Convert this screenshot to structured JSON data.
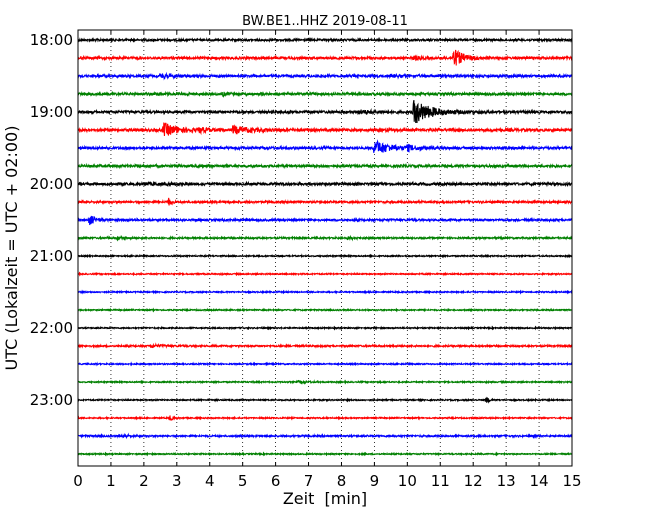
{
  "chart_data": {
    "type": "line",
    "title": "BW.BE1..HHZ 2019-08-11",
    "xlabel": "Zeit  [min]",
    "ylabel": "UTC (Lokalzeit = UTC + 02:00)",
    "xlim": [
      0,
      15
    ],
    "xticks": [
      0,
      1,
      2,
      3,
      4,
      5,
      6,
      7,
      8,
      9,
      10,
      11,
      12,
      13,
      14,
      15
    ],
    "ytick_labels": [
      "18:00",
      "19:00",
      "20:00",
      "21:00",
      "22:00",
      "23:00"
    ],
    "grid": "vertical dotted",
    "colors": [
      "#000000",
      "#ff0000",
      "#0000ff",
      "#008000"
    ],
    "traces": [
      {
        "start": "18:00",
        "color": "#000000",
        "noise": 0.25,
        "events": []
      },
      {
        "start": "18:15",
        "color": "#ff0000",
        "noise": 0.3,
        "events": [
          {
            "t": 11.4,
            "amp": 2.2,
            "dur": 0.6
          },
          {
            "t": 10.2,
            "amp": 0.35,
            "dur": 0.4
          }
        ]
      },
      {
        "start": "18:30",
        "color": "#0000ff",
        "noise": 0.3,
        "events": [
          {
            "t": 2.5,
            "amp": 0.5,
            "dur": 0.6
          },
          {
            "t": 9.5,
            "amp": 0.3,
            "dur": 0.5
          }
        ]
      },
      {
        "start": "18:45",
        "color": "#008000",
        "noise": 0.3,
        "events": [
          {
            "t": 2.4,
            "amp": 0.3,
            "dur": 0.3
          },
          {
            "t": 4.4,
            "amp": 0.35,
            "dur": 0.3
          }
        ]
      },
      {
        "start": "19:00",
        "color": "#000000",
        "noise": 0.3,
        "events": [
          {
            "t": 10.2,
            "amp": 3.0,
            "dur": 1.0
          },
          {
            "t": 8.5,
            "amp": 0.4,
            "dur": 1.0
          }
        ]
      },
      {
        "start": "19:15",
        "color": "#ff0000",
        "noise": 0.35,
        "events": [
          {
            "t": 2.6,
            "amp": 1.6,
            "dur": 0.8
          },
          {
            "t": 4.7,
            "amp": 0.9,
            "dur": 1.0
          },
          {
            "t": 3.7,
            "amp": 0.5,
            "dur": 0.4
          }
        ]
      },
      {
        "start": "19:30",
        "color": "#0000ff",
        "noise": 0.3,
        "events": [
          {
            "t": 9.0,
            "amp": 1.8,
            "dur": 0.9
          },
          {
            "t": 10.0,
            "amp": 0.6,
            "dur": 0.5
          }
        ]
      },
      {
        "start": "19:45",
        "color": "#008000",
        "noise": 0.3,
        "events": []
      },
      {
        "start": "20:00",
        "color": "#000000",
        "noise": 0.3,
        "events": [
          {
            "t": 2.0,
            "amp": 0.2,
            "dur": 2.0
          }
        ]
      },
      {
        "start": "20:15",
        "color": "#ff0000",
        "noise": 0.25,
        "events": [
          {
            "t": 2.75,
            "amp": 0.9,
            "dur": 0.15
          }
        ]
      },
      {
        "start": "20:30",
        "color": "#0000ff",
        "noise": 0.25,
        "events": [
          {
            "t": 0.35,
            "amp": 1.1,
            "dur": 0.4
          }
        ]
      },
      {
        "start": "20:45",
        "color": "#008000",
        "noise": 0.2,
        "events": [
          {
            "t": 1.2,
            "amp": 0.3,
            "dur": 0.4
          },
          {
            "t": 8.2,
            "amp": 0.3,
            "dur": 0.4
          }
        ]
      },
      {
        "start": "21:00",
        "color": "#000000",
        "noise": 0.15,
        "events": []
      },
      {
        "start": "21:15",
        "color": "#ff0000",
        "noise": 0.15,
        "events": []
      },
      {
        "start": "21:30",
        "color": "#0000ff",
        "noise": 0.15,
        "events": []
      },
      {
        "start": "21:45",
        "color": "#008000",
        "noise": 0.15,
        "events": []
      },
      {
        "start": "22:00",
        "color": "#000000",
        "noise": 0.15,
        "events": []
      },
      {
        "start": "22:15",
        "color": "#ff0000",
        "noise": 0.2,
        "events": [
          {
            "t": 2.2,
            "amp": 0.4,
            "dur": 0.6
          }
        ]
      },
      {
        "start": "22:30",
        "color": "#0000ff",
        "noise": 0.15,
        "events": []
      },
      {
        "start": "22:45",
        "color": "#008000",
        "noise": 0.15,
        "events": [
          {
            "t": 6.7,
            "amp": 0.3,
            "dur": 0.5
          }
        ]
      },
      {
        "start": "23:00",
        "color": "#000000",
        "noise": 0.15,
        "events": [
          {
            "t": 12.4,
            "amp": 0.8,
            "dur": 0.15
          }
        ]
      },
      {
        "start": "23:15",
        "color": "#ff0000",
        "noise": 0.15,
        "events": [
          {
            "t": 2.8,
            "amp": 0.7,
            "dur": 0.15
          }
        ]
      },
      {
        "start": "23:30",
        "color": "#0000ff",
        "noise": 0.2,
        "events": [
          {
            "t": 1.4,
            "amp": 0.3,
            "dur": 0.4
          }
        ]
      },
      {
        "start": "23:45",
        "color": "#008000",
        "noise": 0.15,
        "events": []
      }
    ]
  }
}
